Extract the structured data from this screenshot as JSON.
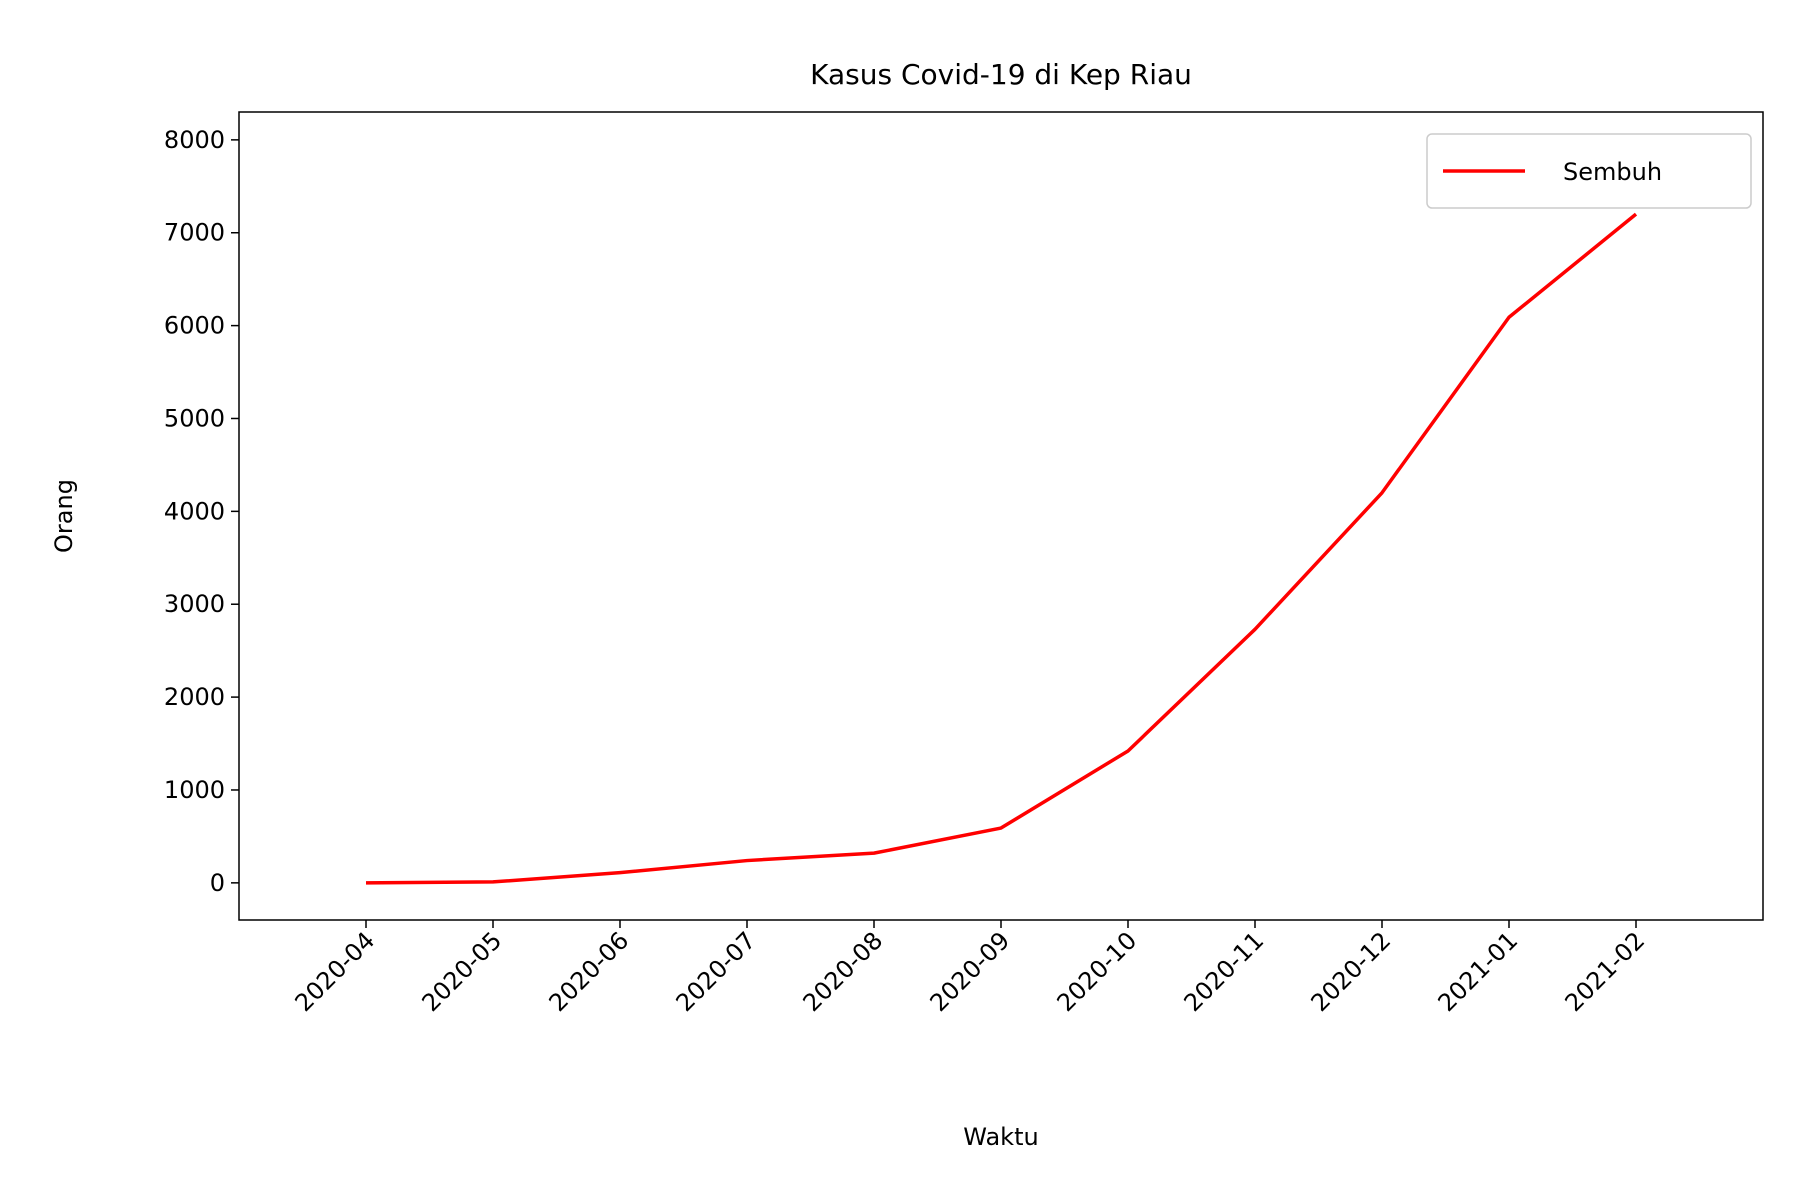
{
  "chart_data": {
    "type": "line",
    "title": "Kasus Covid-19 di Kep Riau",
    "x_label": "Waktu",
    "y_label": "Orang",
    "x": [
      "2020-04",
      "2020-05",
      "2020-06",
      "2020-07",
      "2020-08",
      "2020-09",
      "2020-10",
      "2020-11",
      "2020-12",
      "2021-01",
      "2021-02"
    ],
    "series": [
      {
        "name": "Sembuh",
        "color": "#ff0000",
        "values": [
          0,
          10,
          110,
          240,
          320,
          590,
          1420,
          2730,
          4200,
          6090,
          7200
        ]
      }
    ],
    "xlim": [
      "2020-03",
      "2021-03"
    ],
    "xticks": [
      "2020-04",
      "2020-05",
      "2020-06",
      "2020-07",
      "2020-08",
      "2020-09",
      "2020-10",
      "2020-11",
      "2020-12",
      "2021-01",
      "2021-02"
    ],
    "ylim": [
      -400,
      8300
    ],
    "yticks": [
      0,
      1000,
      2000,
      3000,
      4000,
      5000,
      6000,
      7000,
      8000
    ],
    "legend": "upper right",
    "grid": false
  }
}
